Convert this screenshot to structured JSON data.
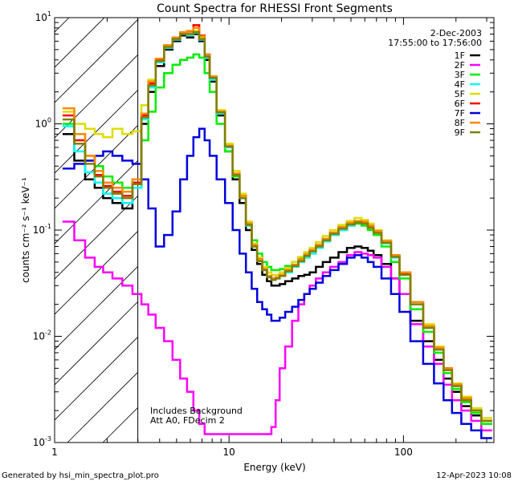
{
  "chart_data": {
    "type": "line",
    "title": "Count Spectra for RHESSI Front Segments",
    "xlabel": "Energy (keV)",
    "ylabel": "counts cm⁻² s⁻¹ keV⁻¹",
    "xscale": "log",
    "yscale": "log",
    "xlim": [
      1,
      330
    ],
    "ylim": [
      0.001,
      10
    ],
    "x_ticks": [
      {
        "value": 1,
        "label": "1"
      },
      {
        "value": 10,
        "label": "10"
      },
      {
        "value": 100,
        "label": "100"
      }
    ],
    "y_ticks": [
      {
        "value": 0.001,
        "base": "10",
        "exp": "-3"
      },
      {
        "value": 0.01,
        "base": "10",
        "exp": "-2"
      },
      {
        "value": 0.1,
        "base": "10",
        "exp": "-1"
      },
      {
        "value": 1,
        "base": "10",
        "exp": "0"
      },
      {
        "value": 10,
        "base": "10",
        "exp": "1"
      }
    ],
    "hatched_region_max_energy": 3,
    "date": "2-Dec-2003",
    "time_range": "17:55:00 to 17:56:00",
    "annotations": [
      "Includes Background",
      "Att A0, FDecim 2"
    ],
    "series": [
      {
        "name": "1F",
        "color": "#000000",
        "x": [
          1.2,
          1.4,
          1.6,
          1.8,
          2.0,
          2.3,
          2.6,
          3.0,
          3.3,
          3.6,
          4.0,
          4.5,
          5.0,
          5.5,
          6.0,
          6.5,
          7.0,
          7.5,
          8.0,
          9.0,
          10,
          11,
          12,
          13,
          14,
          15,
          16,
          17,
          18,
          19,
          20,
          22,
          24,
          26,
          28,
          30,
          33,
          36,
          40,
          45,
          50,
          55,
          60,
          65,
          70,
          80,
          90,
          100,
          120,
          140,
          160,
          180,
          200,
          230,
          260,
          300
        ],
        "y": [
          0.8,
          0.45,
          0.3,
          0.25,
          0.2,
          0.18,
          0.16,
          0.25,
          1.0,
          2.0,
          3.5,
          5.0,
          6.0,
          6.8,
          6.5,
          7.0,
          6.0,
          4.0,
          2.5,
          1.2,
          0.55,
          0.3,
          0.18,
          0.1,
          0.065,
          0.048,
          0.038,
          0.033,
          0.03,
          0.03,
          0.031,
          0.033,
          0.035,
          0.037,
          0.038,
          0.04,
          0.045,
          0.05,
          0.055,
          0.062,
          0.068,
          0.07,
          0.068,
          0.064,
          0.058,
          0.048,
          0.035,
          0.025,
          0.014,
          0.009,
          0.006,
          0.004,
          0.003,
          0.0022,
          0.0018,
          0.0015
        ]
      },
      {
        "name": "2F",
        "color": "#ff00ff",
        "x": [
          1.2,
          1.4,
          1.6,
          1.8,
          2.0,
          2.3,
          2.6,
          3.0,
          3.3,
          3.6,
          4.0,
          4.5,
          5.0,
          5.5,
          6.0,
          6.5,
          7.0,
          7.5,
          8.0,
          9.0,
          10,
          11,
          12,
          13,
          14,
          15,
          16,
          17,
          18,
          19,
          20,
          22,
          24,
          26,
          28,
          30,
          33,
          36,
          40,
          45,
          50,
          55,
          60,
          65,
          70,
          80,
          90,
          100,
          120,
          140,
          160,
          180,
          200,
          230,
          260,
          300
        ],
        "y": [
          0.12,
          0.08,
          0.055,
          0.045,
          0.04,
          0.035,
          0.03,
          0.025,
          0.02,
          0.016,
          0.012,
          0.009,
          0.006,
          0.004,
          0.003,
          0.002,
          0.0015,
          0.0012,
          0.0012,
          0.0012,
          0.0012,
          0.0012,
          0.0012,
          0.0012,
          0.0012,
          0.0012,
          0.0012,
          0.0012,
          0.0014,
          0.0025,
          0.005,
          0.008,
          0.014,
          0.02,
          0.025,
          0.03,
          0.035,
          0.04,
          0.045,
          0.05,
          0.058,
          0.062,
          0.06,
          0.058,
          0.055,
          0.045,
          0.035,
          0.025,
          0.013,
          0.008,
          0.0055,
          0.0035,
          0.0025,
          0.002,
          0.0016,
          0.0013
        ]
      },
      {
        "name": "3F",
        "color": "#00ee00",
        "x": [
          1.2,
          1.4,
          1.6,
          1.8,
          2.0,
          2.3,
          2.6,
          3.0,
          3.3,
          3.6,
          4.0,
          4.5,
          5.0,
          5.5,
          6.0,
          6.5,
          7.0,
          7.5,
          8.0,
          9.0,
          10,
          11,
          12,
          13,
          14,
          15,
          16,
          17,
          18,
          19,
          20,
          22,
          24,
          26,
          28,
          30,
          33,
          36,
          40,
          45,
          50,
          55,
          60,
          65,
          70,
          80,
          90,
          100,
          120,
          140,
          160,
          180,
          200,
          230,
          260,
          300
        ],
        "y": [
          1.0,
          0.7,
          0.5,
          0.4,
          0.32,
          0.28,
          0.25,
          0.3,
          0.7,
          1.3,
          2.2,
          3.0,
          3.6,
          4.0,
          4.2,
          4.5,
          4.2,
          3.0,
          2.0,
          1.0,
          0.55,
          0.32,
          0.2,
          0.12,
          0.08,
          0.06,
          0.05,
          0.045,
          0.042,
          0.042,
          0.043,
          0.046,
          0.05,
          0.055,
          0.06,
          0.065,
          0.072,
          0.08,
          0.09,
          0.1,
          0.11,
          0.115,
          0.11,
          0.1,
          0.09,
          0.07,
          0.05,
          0.035,
          0.018,
          0.011,
          0.007,
          0.0045,
          0.0032,
          0.0024,
          0.0019,
          0.0015
        ]
      },
      {
        "name": "4F",
        "color": "#00ffff",
        "x": [
          1.2,
          1.4,
          1.6,
          1.8,
          2.0,
          2.3,
          2.6,
          3.0,
          3.3,
          3.6,
          4.0,
          4.5,
          5.0,
          5.5,
          6.0,
          6.5,
          7.0,
          7.5,
          8.0,
          9.0,
          10,
          11,
          12,
          13,
          14,
          15,
          16,
          17,
          18,
          19,
          20,
          22,
          24,
          26,
          28,
          30,
          33,
          36,
          40,
          45,
          50,
          55,
          60,
          65,
          70,
          80,
          90,
          100,
          120,
          140,
          160,
          180,
          200,
          230,
          260,
          300
        ],
        "y": [
          0.95,
          0.55,
          0.35,
          0.28,
          0.22,
          0.2,
          0.18,
          0.25,
          1.1,
          2.2,
          3.8,
          5.2,
          6.2,
          7.0,
          6.8,
          7.2,
          6.2,
          4.2,
          2.6,
          1.25,
          0.6,
          0.33,
          0.2,
          0.11,
          0.07,
          0.052,
          0.042,
          0.036,
          0.034,
          0.035,
          0.037,
          0.04,
          0.045,
          0.05,
          0.055,
          0.06,
          0.068,
          0.078,
          0.09,
          0.1,
          0.11,
          0.12,
          0.115,
          0.105,
          0.095,
          0.075,
          0.055,
          0.038,
          0.02,
          0.012,
          0.0075,
          0.0048,
          0.0034,
          0.0025,
          0.002,
          0.0016
        ]
      },
      {
        "name": "5F",
        "color": "#dddd00",
        "x": [
          1.2,
          1.4,
          1.6,
          1.8,
          2.0,
          2.3,
          2.6,
          3.0,
          3.3,
          3.6,
          4.0,
          4.5,
          5.0,
          5.5,
          6.0,
          6.5,
          7.0,
          7.5,
          8.0,
          9.0,
          10,
          11,
          12,
          13,
          14,
          15,
          16,
          17,
          18,
          19,
          20,
          22,
          24,
          26,
          28,
          30,
          33,
          36,
          40,
          45,
          50,
          55,
          60,
          65,
          70,
          80,
          90,
          100,
          120,
          140,
          160,
          180,
          200,
          230,
          260,
          300
        ],
        "y": [
          1.3,
          1.0,
          0.9,
          0.8,
          0.75,
          0.9,
          0.8,
          0.85,
          1.5,
          2.6,
          4.0,
          5.5,
          6.5,
          7.2,
          7.0,
          7.5,
          6.5,
          4.4,
          2.8,
          1.35,
          0.65,
          0.36,
          0.22,
          0.12,
          0.075,
          0.055,
          0.045,
          0.04,
          0.038,
          0.038,
          0.04,
          0.044,
          0.05,
          0.056,
          0.062,
          0.068,
          0.077,
          0.088,
          0.1,
          0.112,
          0.122,
          0.13,
          0.125,
          0.115,
          0.1,
          0.08,
          0.058,
          0.04,
          0.021,
          0.013,
          0.008,
          0.005,
          0.0036,
          0.0027,
          0.0021,
          0.0017
        ]
      },
      {
        "name": "6F",
        "color": "#ff0000",
        "x": [
          1.2,
          1.4,
          1.6,
          1.8,
          2.0,
          2.3,
          2.6,
          3.0,
          3.3,
          3.6,
          4.0,
          4.5,
          5.0,
          5.5,
          6.0,
          6.5,
          7.0,
          7.5,
          8.0,
          9.0,
          10,
          11,
          12,
          13,
          14,
          15,
          16,
          17,
          18,
          19,
          20,
          22,
          24,
          26,
          28,
          30,
          33,
          36,
          40,
          45,
          50,
          55,
          60,
          65,
          70,
          80,
          90,
          100,
          120,
          140,
          160,
          180,
          200,
          230,
          260,
          300
        ],
        "y": [
          1.2,
          0.7,
          0.45,
          0.33,
          0.26,
          0.23,
          0.21,
          0.28,
          1.2,
          2.4,
          4.0,
          5.4,
          6.4,
          7.2,
          7.4,
          8.5,
          6.8,
          4.5,
          2.8,
          1.3,
          0.62,
          0.34,
          0.21,
          0.115,
          0.072,
          0.053,
          0.043,
          0.037,
          0.035,
          0.036,
          0.038,
          0.042,
          0.047,
          0.052,
          0.058,
          0.064,
          0.072,
          0.082,
          0.094,
          0.105,
          0.115,
          0.12,
          0.118,
          0.108,
          0.097,
          0.078,
          0.057,
          0.039,
          0.021,
          0.0125,
          0.0078,
          0.005,
          0.0035,
          0.0026,
          0.002,
          0.0016
        ]
      },
      {
        "name": "7F",
        "color": "#0000dd",
        "x": [
          1.2,
          1.4,
          1.6,
          1.8,
          2.0,
          2.3,
          2.6,
          3.0,
          3.3,
          3.6,
          4.0,
          4.5,
          5.0,
          5.5,
          6.0,
          6.5,
          7.0,
          7.5,
          8.0,
          9.0,
          10,
          11,
          12,
          13,
          14,
          15,
          16,
          17,
          18,
          19,
          20,
          22,
          24,
          26,
          28,
          30,
          33,
          36,
          40,
          45,
          50,
          55,
          60,
          65,
          70,
          80,
          90,
          100,
          120,
          140,
          160,
          180,
          200,
          230,
          260,
          300
        ],
        "y": [
          0.38,
          0.42,
          0.45,
          0.5,
          0.55,
          0.5,
          0.45,
          0.42,
          0.3,
          0.16,
          0.07,
          0.09,
          0.15,
          0.3,
          0.5,
          0.75,
          0.9,
          0.7,
          0.5,
          0.3,
          0.18,
          0.1,
          0.06,
          0.04,
          0.028,
          0.021,
          0.018,
          0.016,
          0.014,
          0.014,
          0.015,
          0.017,
          0.019,
          0.022,
          0.025,
          0.028,
          0.032,
          0.037,
          0.042,
          0.048,
          0.055,
          0.058,
          0.055,
          0.05,
          0.045,
          0.035,
          0.025,
          0.017,
          0.009,
          0.0055,
          0.0036,
          0.0025,
          0.0019,
          0.0015,
          0.0013,
          0.0011
        ]
      },
      {
        "name": "8F",
        "color": "#ff8800",
        "x": [
          1.2,
          1.4,
          1.6,
          1.8,
          2.0,
          2.3,
          2.6,
          3.0,
          3.3,
          3.6,
          4.0,
          4.5,
          5.0,
          5.5,
          6.0,
          6.5,
          7.0,
          7.5,
          8.0,
          9.0,
          10,
          11,
          12,
          13,
          14,
          15,
          16,
          17,
          18,
          19,
          20,
          22,
          24,
          26,
          28,
          30,
          33,
          36,
          40,
          45,
          50,
          55,
          60,
          65,
          70,
          80,
          90,
          100,
          120,
          140,
          160,
          180,
          200,
          230,
          260,
          300
        ],
        "y": [
          1.4,
          0.8,
          0.5,
          0.36,
          0.28,
          0.25,
          0.23,
          0.3,
          1.25,
          2.5,
          4.1,
          5.5,
          6.5,
          7.3,
          7.5,
          8.0,
          6.7,
          4.5,
          2.8,
          1.3,
          0.62,
          0.34,
          0.21,
          0.115,
          0.072,
          0.053,
          0.043,
          0.037,
          0.035,
          0.036,
          0.038,
          0.042,
          0.047,
          0.053,
          0.059,
          0.065,
          0.073,
          0.083,
          0.095,
          0.107,
          0.117,
          0.122,
          0.12,
          0.11,
          0.098,
          0.079,
          0.058,
          0.04,
          0.021,
          0.0125,
          0.0078,
          0.005,
          0.0035,
          0.0026,
          0.002,
          0.0016
        ]
      },
      {
        "name": "9F",
        "color": "#808000",
        "x": [
          1.2,
          1.4,
          1.6,
          1.8,
          2.0,
          2.3,
          2.6,
          3.0,
          3.3,
          3.6,
          4.0,
          4.5,
          5.0,
          5.5,
          6.0,
          6.5,
          7.0,
          7.5,
          8.0,
          9.0,
          10,
          11,
          12,
          13,
          14,
          15,
          16,
          17,
          18,
          19,
          20,
          22,
          24,
          26,
          28,
          30,
          33,
          36,
          40,
          45,
          50,
          55,
          60,
          65,
          70,
          80,
          90,
          100,
          120,
          140,
          160,
          180,
          200,
          230,
          260,
          300
        ],
        "y": [
          1.1,
          0.65,
          0.42,
          0.32,
          0.25,
          0.22,
          0.2,
          0.27,
          1.15,
          2.3,
          3.9,
          5.3,
          6.3,
          7.0,
          7.0,
          7.3,
          6.3,
          4.3,
          2.7,
          1.28,
          0.61,
          0.33,
          0.2,
          0.112,
          0.07,
          0.051,
          0.042,
          0.036,
          0.034,
          0.035,
          0.037,
          0.041,
          0.046,
          0.051,
          0.057,
          0.063,
          0.07,
          0.08,
          0.092,
          0.103,
          0.113,
          0.118,
          0.115,
          0.105,
          0.094,
          0.076,
          0.056,
          0.038,
          0.02,
          0.012,
          0.0075,
          0.0048,
          0.0034,
          0.0025,
          0.002,
          0.0016
        ]
      }
    ]
  },
  "footer": {
    "generated_by": "Generated by hsi_min_spectra_plot.pro",
    "generated_date": "12-Apr-2023 10:08"
  }
}
